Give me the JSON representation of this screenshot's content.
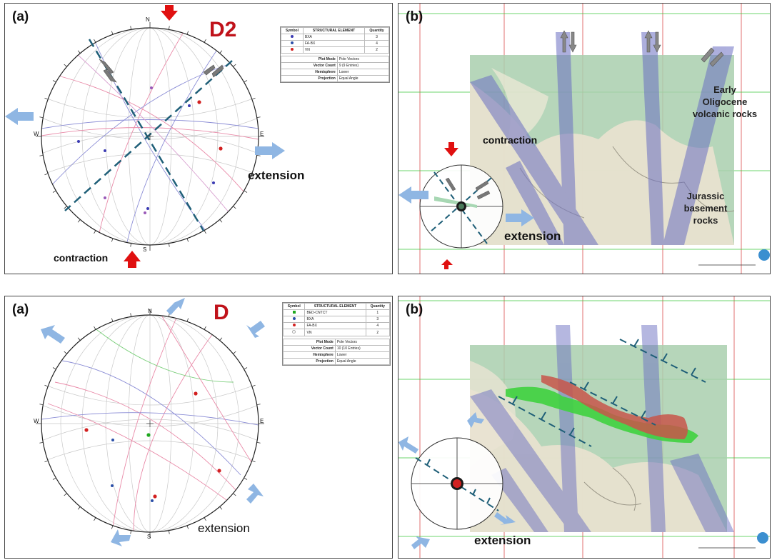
{
  "top": {
    "stereonet": {
      "panel_tag": "(a)",
      "deformation_label": "D2",
      "north": "N",
      "south": "S",
      "east": "E",
      "west": "W",
      "extension_label": "extension",
      "contraction_label": "contraction",
      "legend": {
        "headers": [
          "Symbol",
          "STRUCTURAL ELEMENT",
          "Quantity"
        ],
        "rows": [
          {
            "color": "#3b3bb3",
            "element": "BXA",
            "quantity": "3"
          },
          {
            "color": "#2a4fa8",
            "element": "FA-BX",
            "quantity": "4"
          },
          {
            "color": "#d22020",
            "element": "VN",
            "quantity": "2"
          }
        ],
        "info": [
          {
            "key": "Plot Mode",
            "value": "Pole Vectors"
          },
          {
            "key": "Vector Count",
            "value": "9 (9 Entries)"
          },
          {
            "key": "Hemisphere",
            "value": "Lower"
          },
          {
            "key": "Projection",
            "value": "Equal Angle"
          }
        ]
      }
    },
    "model": {
      "panel_tag": "(b)",
      "contraction_label": "contraction",
      "extension_label": "extension",
      "unit_upper": [
        "Early",
        "Oligocene",
        "volcanic rocks"
      ],
      "unit_lower": [
        "Jurassic",
        "basement",
        "rocks"
      ]
    }
  },
  "bottom": {
    "stereonet": {
      "panel_tag": "(a)",
      "deformation_label": "D",
      "north": "N",
      "south": "S",
      "east": "E",
      "west": "W",
      "extension_label": "extension",
      "legend": {
        "headers": [
          "Symbol",
          "STRUCTURAL ELEMENT",
          "Quantity"
        ],
        "rows": [
          {
            "color": "#1fa81f",
            "element": "BED-CNTCT",
            "quantity": "1"
          },
          {
            "color": "#2a4fa8",
            "element": "BXA",
            "quantity": "3"
          },
          {
            "color": "#d22020",
            "element": "FA-BX",
            "quantity": "4"
          },
          {
            "color": "#d22020",
            "element": "VN",
            "quantity": "2"
          }
        ],
        "info": [
          {
            "key": "Plot Mode",
            "value": "Pole Vectors"
          },
          {
            "key": "Vector Count",
            "value": "10 (10 Entries)"
          },
          {
            "key": "Hemisphere",
            "value": "Lower"
          },
          {
            "key": "Projection",
            "value": "Equal Angle"
          }
        ]
      }
    },
    "model": {
      "panel_tag": "(b)",
      "extension_label": "extension"
    }
  },
  "colors": {
    "arrow_blue": "#8fb6e3",
    "arrow_red": "#e01010",
    "d_label_red": "#c0121a",
    "dashed_line": "#1f5f78",
    "grid_red": "#d94c4c",
    "grid_green": "#3cc63c",
    "fault_purple": "#6b6fc2",
    "volcanic_green": "#a9cfae",
    "basement_cream": "#e9e2cf",
    "ore_red": "#c8564a",
    "ore_green": "#3fd23f"
  }
}
